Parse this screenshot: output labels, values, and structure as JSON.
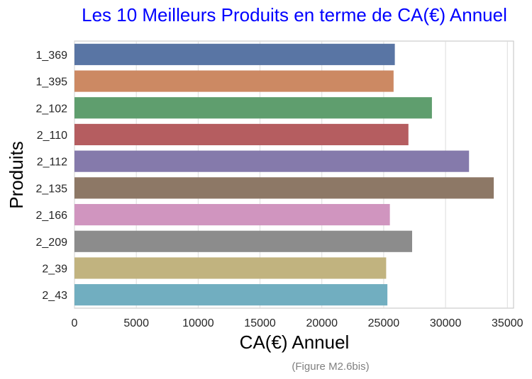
{
  "chart_data": {
    "type": "bar",
    "orientation": "horizontal",
    "title": "Les 10 Meilleurs Produits en terme de CA(€) Annuel",
    "xlabel": "CA(€) Annuel",
    "ylabel": "Produits",
    "caption": "(Figure M2.6bis)",
    "title_color": "#0000ff",
    "caption_color": "#808080",
    "categories": [
      "1_369",
      "1_395",
      "2_102",
      "2_110",
      "2_112",
      "2_135",
      "2_166",
      "2_209",
      "2_39",
      "2_43"
    ],
    "values": [
      25900,
      25800,
      28900,
      27000,
      31900,
      33900,
      25500,
      27300,
      25200,
      25300
    ],
    "colors": [
      "#5975a4",
      "#cc8963",
      "#5f9e6e",
      "#b55d60",
      "#857aab",
      "#8d7866",
      "#d095bf",
      "#8c8c8c",
      "#c1b37f",
      "#71aec0"
    ],
    "xlim": [
      0,
      35500
    ],
    "xticks": [
      0,
      5000,
      10000,
      15000,
      20000,
      25000,
      30000,
      35000
    ],
    "grid": true,
    "legend": "none"
  }
}
